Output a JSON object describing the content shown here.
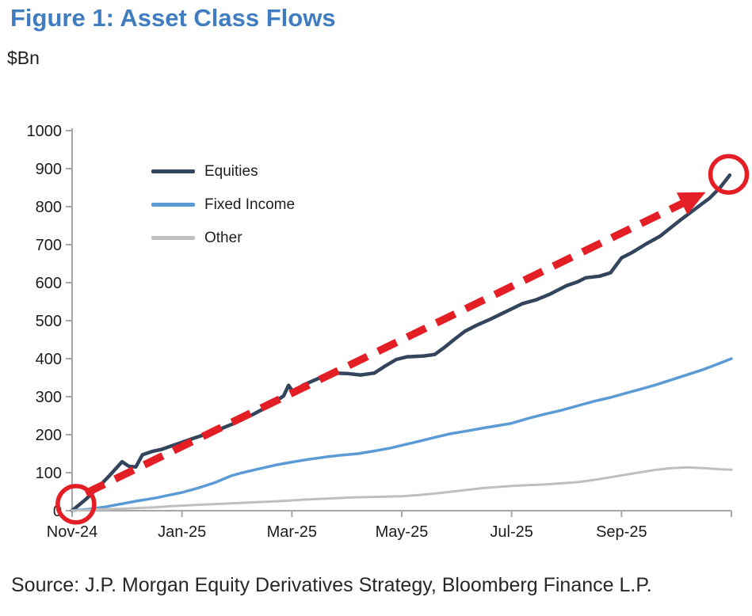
{
  "page": {
    "title": "Figure 1: Asset Class Flows",
    "unit_label": "$Bn",
    "source": "Source: J.P. Morgan Equity Derivatives Strategy, Bloomberg Finance L.P.",
    "colors": {
      "title_blue": "#3F7DC0",
      "accent_red": "#E41E25",
      "axis_gray": "#A3A7AB",
      "text_dark": "#1C1C1C"
    }
  },
  "chart_data": {
    "type": "line",
    "title": "Figure 1: Asset Class Flows",
    "ylabel": "$Bn",
    "x_unit": "months since Nov-2024",
    "xlim": [
      0,
      12
    ],
    "ylim": [
      0,
      1000
    ],
    "grid": false,
    "legend_position": "upper-left",
    "y_ticks": [
      0,
      100,
      200,
      300,
      400,
      500,
      600,
      700,
      800,
      900,
      1000
    ],
    "x_ticks": [
      {
        "t": 0,
        "label": "Nov-24"
      },
      {
        "t": 2,
        "label": "Jan-25"
      },
      {
        "t": 4,
        "label": "Mar-25"
      },
      {
        "t": 6,
        "label": "May-25"
      },
      {
        "t": 8,
        "label": "Jul-25"
      },
      {
        "t": 10,
        "label": "Sep-25"
      },
      {
        "t": 12,
        "label": ""
      }
    ],
    "series": [
      {
        "name": "Equities",
        "color": "#33455C",
        "width": 4.5,
        "points": [
          [
            0,
            0
          ],
          [
            0.25,
            30
          ],
          [
            0.45,
            58
          ],
          [
            0.68,
            92
          ],
          [
            0.91,
            129
          ],
          [
            1.03,
            117
          ],
          [
            1.16,
            115
          ],
          [
            1.28,
            147
          ],
          [
            1.46,
            156
          ],
          [
            1.62,
            161
          ],
          [
            1.78,
            169
          ],
          [
            1.96,
            178
          ],
          [
            2.2,
            190
          ],
          [
            2.45,
            202
          ],
          [
            2.7,
            215
          ],
          [
            3.0,
            233
          ],
          [
            3.3,
            254
          ],
          [
            3.6,
            277
          ],
          [
            3.85,
            302
          ],
          [
            3.94,
            330
          ],
          [
            4.03,
            310
          ],
          [
            4.2,
            330
          ],
          [
            4.4,
            343
          ],
          [
            4.6,
            355
          ],
          [
            4.78,
            362
          ],
          [
            5.0,
            361
          ],
          [
            5.25,
            357
          ],
          [
            5.5,
            362
          ],
          [
            5.68,
            379
          ],
          [
            5.9,
            398
          ],
          [
            6.1,
            405
          ],
          [
            6.4,
            407
          ],
          [
            6.6,
            411
          ],
          [
            6.78,
            430
          ],
          [
            6.95,
            450
          ],
          [
            7.15,
            472
          ],
          [
            7.35,
            487
          ],
          [
            7.6,
            503
          ],
          [
            7.8,
            517
          ],
          [
            8.0,
            531
          ],
          [
            8.2,
            545
          ],
          [
            8.45,
            555
          ],
          [
            8.7,
            570
          ],
          [
            9.0,
            592
          ],
          [
            9.2,
            602
          ],
          [
            9.35,
            613
          ],
          [
            9.6,
            617
          ],
          [
            9.8,
            626
          ],
          [
            10.0,
            665
          ],
          [
            10.2,
            680
          ],
          [
            10.45,
            702
          ],
          [
            10.7,
            722
          ],
          [
            10.9,
            745
          ],
          [
            11.1,
            768
          ],
          [
            11.35,
            795
          ],
          [
            11.6,
            822
          ],
          [
            11.8,
            851
          ],
          [
            11.97,
            883
          ]
        ]
      },
      {
        "name": "Fixed Income",
        "color": "#5B9BD5",
        "width": 3.5,
        "points": [
          [
            0,
            0
          ],
          [
            0.3,
            4
          ],
          [
            0.6,
            10
          ],
          [
            0.9,
            18
          ],
          [
            1.2,
            26
          ],
          [
            1.5,
            33
          ],
          [
            1.8,
            42
          ],
          [
            2.0,
            48
          ],
          [
            2.3,
            60
          ],
          [
            2.6,
            74
          ],
          [
            2.9,
            92
          ],
          [
            3.1,
            100
          ],
          [
            3.4,
            110
          ],
          [
            3.7,
            120
          ],
          [
            4.0,
            128
          ],
          [
            4.3,
            135
          ],
          [
            4.6,
            141
          ],
          [
            4.9,
            146
          ],
          [
            5.2,
            150
          ],
          [
            5.5,
            157
          ],
          [
            5.8,
            165
          ],
          [
            6.0,
            172
          ],
          [
            6.3,
            182
          ],
          [
            6.6,
            193
          ],
          [
            6.9,
            203
          ],
          [
            7.2,
            210
          ],
          [
            7.5,
            218
          ],
          [
            7.8,
            225
          ],
          [
            8.0,
            230
          ],
          [
            8.3,
            243
          ],
          [
            8.6,
            254
          ],
          [
            8.9,
            264
          ],
          [
            9.2,
            276
          ],
          [
            9.5,
            288
          ],
          [
            9.8,
            298
          ],
          [
            10.0,
            306
          ],
          [
            10.3,
            318
          ],
          [
            10.6,
            330
          ],
          [
            10.9,
            344
          ],
          [
            11.2,
            358
          ],
          [
            11.5,
            372
          ],
          [
            11.75,
            386
          ],
          [
            12,
            400
          ]
        ]
      },
      {
        "name": "Other",
        "color": "#BFBFBF",
        "width": 3,
        "points": [
          [
            0,
            0
          ],
          [
            0.3,
            2
          ],
          [
            0.6,
            4
          ],
          [
            0.9,
            5
          ],
          [
            1.2,
            7
          ],
          [
            1.5,
            9
          ],
          [
            1.8,
            12
          ],
          [
            2.1,
            14
          ],
          [
            2.4,
            16
          ],
          [
            2.7,
            18
          ],
          [
            3.0,
            20
          ],
          [
            3.3,
            22
          ],
          [
            3.6,
            24
          ],
          [
            3.9,
            26
          ],
          [
            4.2,
            29
          ],
          [
            4.5,
            31
          ],
          [
            4.8,
            33
          ],
          [
            5.1,
            35
          ],
          [
            5.4,
            36
          ],
          [
            5.7,
            37
          ],
          [
            6.0,
            38
          ],
          [
            6.3,
            41
          ],
          [
            6.6,
            45
          ],
          [
            6.9,
            50
          ],
          [
            7.2,
            55
          ],
          [
            7.5,
            60
          ],
          [
            7.8,
            63
          ],
          [
            8.0,
            65
          ],
          [
            8.3,
            67
          ],
          [
            8.6,
            69
          ],
          [
            8.9,
            72
          ],
          [
            9.2,
            75
          ],
          [
            9.5,
            81
          ],
          [
            9.8,
            88
          ],
          [
            10.0,
            93
          ],
          [
            10.3,
            100
          ],
          [
            10.6,
            107
          ],
          [
            10.9,
            112
          ],
          [
            11.2,
            114
          ],
          [
            11.5,
            112
          ],
          [
            11.8,
            109
          ],
          [
            12,
            108
          ]
        ]
      }
    ],
    "annotations": {
      "trend_arrow": {
        "color": "#E41E25",
        "from": [
          0.25,
          46
        ],
        "to": [
          11.53,
          838
        ],
        "width": 9.5,
        "dash": [
          26,
          15
        ],
        "head_length": 33,
        "head_width": 31
      },
      "circles": [
        {
          "at": [
            0.07,
            17
          ],
          "r": 23,
          "stroke_width": 5.5
        },
        {
          "at": [
            11.95,
            885
          ],
          "r": 23,
          "stroke_width": 5.5
        }
      ]
    }
  }
}
